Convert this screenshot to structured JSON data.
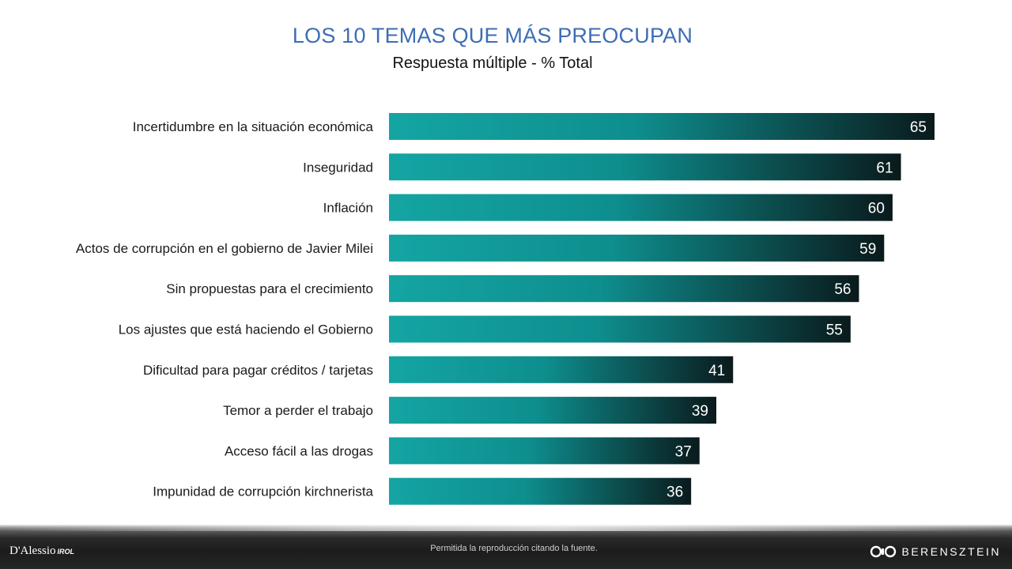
{
  "title": "LOS 10 TEMAS QUE MÁS PREOCUPAN",
  "subtitle": "Respuesta múltiple - % Total",
  "chart_data": {
    "type": "bar",
    "orientation": "horizontal",
    "title": "LOS 10 TEMAS QUE MÁS PREOCUPAN",
    "subtitle": "Respuesta múltiple - % Total",
    "categories": [
      "Incertidumbre en la situación económica",
      "Inseguridad",
      "Inflación",
      "Actos de corrupción en el gobierno de Javier Milei",
      "Sin propuestas para el crecimiento",
      "Los ajustes que está haciendo el Gobierno",
      "Dificultad para pagar créditos / tarjetas",
      "Temor a perder el trabajo",
      "Acceso fácil a las drogas",
      "Impunidad de corrupción kirchnerista"
    ],
    "values": [
      65,
      61,
      60,
      59,
      56,
      55,
      41,
      39,
      37,
      36
    ],
    "xlim": [
      0,
      65
    ],
    "grid": false,
    "legend": "none",
    "data_labels": "inside-end",
    "bar_gradient": [
      "#14a5a3",
      "#0c8f8f",
      "#0a1b1d"
    ]
  },
  "footer": {
    "note": "Permitida la reproducción citando la fuente.",
    "logo_left": "D'Alessio",
    "logo_left_suffix": "IROL",
    "logo_right": "BERENSZTEIN"
  }
}
